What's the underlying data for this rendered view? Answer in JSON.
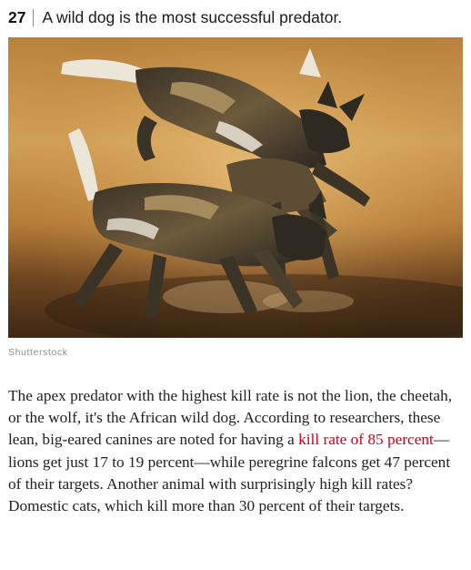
{
  "item": {
    "number": "27",
    "title": "A wild dog is the most successful predator.",
    "image": {
      "subject": "african-wild-dogs-playing",
      "colors": {
        "sky": "#c8954a",
        "ground": "#5a3a1e",
        "coat_dark": "#2e2a22",
        "coat_tan": "#a48a5c",
        "coat_light": "#ece6d8"
      }
    },
    "credit": "Shutterstock",
    "paragraph": {
      "before_link": "The apex predator with the highest kill rate is not the lion, the cheetah, or the wolf, it's the African wild dog. According to researchers, these lean, big-eared canines are noted for having a ",
      "link": "kill rate of 85 percent",
      "after_link": "—lions get just 17 to 19 percent—while peregrine falcons get 47 percent of their targets. Another animal with surprisingly high kill rates? Domestic cats, which kill more than 30 percent of their targets."
    },
    "link_color": "#d0021b"
  }
}
